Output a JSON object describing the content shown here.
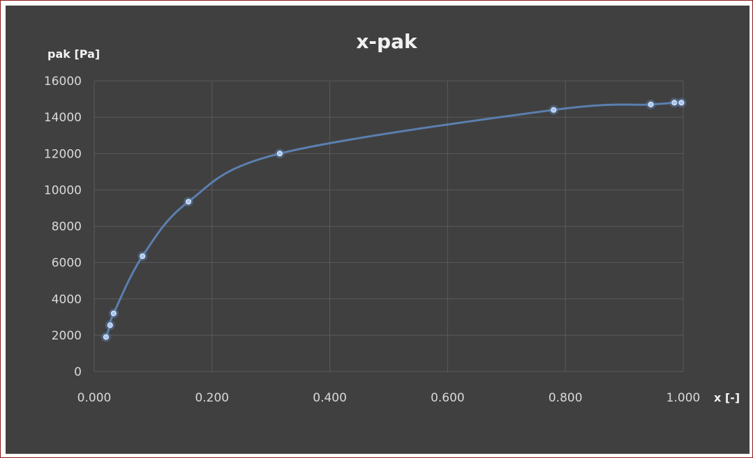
{
  "chart_data": {
    "type": "scatter",
    "title": "x-pak",
    "xlabel": "x [-]",
    "ylabel": "pak [Pa]",
    "xlim": [
      0,
      1
    ],
    "ylim": [
      0,
      16000
    ],
    "xticks": [
      "0.000",
      "0.200",
      "0.400",
      "0.600",
      "0.800",
      "1.000"
    ],
    "yticks": [
      "0",
      "2000",
      "4000",
      "6000",
      "8000",
      "10000",
      "12000",
      "14000",
      "16000"
    ],
    "grid": true,
    "smooth_line": true,
    "colors": {
      "background": "#404040",
      "line": "#5b7fb0",
      "marker": "#a9c8f0",
      "grid": "#5a5a5a"
    },
    "series": [
      {
        "points": [
          [
            0.02,
            1900
          ],
          [
            0.027,
            2550
          ],
          [
            0.033,
            3200
          ],
          [
            0.082,
            6350
          ],
          [
            0.16,
            9350
          ],
          [
            0.315,
            12000
          ],
          [
            0.78,
            14400
          ],
          [
            0.945,
            14700
          ],
          [
            0.985,
            14800
          ],
          [
            0.997,
            14800
          ]
        ]
      }
    ]
  }
}
